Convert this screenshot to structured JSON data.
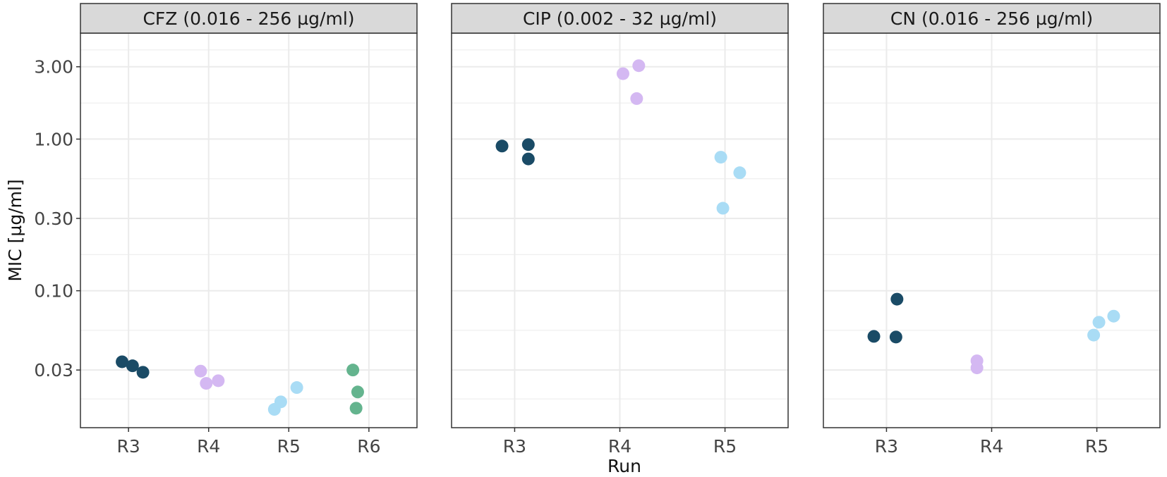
{
  "chart_data": {
    "type": "scatter",
    "xlabel": "Run",
    "ylabel": "MIC [µg/ml]",
    "yscale": "log10",
    "ylim": [
      0.0125,
      5.0
    ],
    "yticks": [
      0.03,
      0.1,
      0.3,
      1.0,
      3.0
    ],
    "ytick_labels": [
      "0.03",
      "0.10",
      "0.30",
      "1.00",
      "3.00"
    ],
    "grid": true,
    "colors": {
      "R3": "#1a4b66",
      "R4": "#d4b8f2",
      "R5": "#a9dcf5",
      "R6": "#64b48e",
      "strip_bg": "#d9d9d9",
      "grid": "#ebebeb",
      "border": "#333333"
    },
    "panels": [
      {
        "title": "CFZ (0.016 - 256 µg/ml)",
        "categories": [
          "R3",
          "R4",
          "R5",
          "R6"
        ],
        "series": [
          {
            "name": "R3",
            "points": [
              {
                "x": 0.92,
                "y": 0.034
              },
              {
                "x": 1.05,
                "y": 0.032
              },
              {
                "x": 1.18,
                "y": 0.029
              }
            ]
          },
          {
            "name": "R4",
            "points": [
              {
                "x": 1.9,
                "y": 0.0295
              },
              {
                "x": 1.97,
                "y": 0.0245
              },
              {
                "x": 2.12,
                "y": 0.0255
              }
            ]
          },
          {
            "name": "R5",
            "points": [
              {
                "x": 2.82,
                "y": 0.0165
              },
              {
                "x": 2.9,
                "y": 0.0185
              },
              {
                "x": 3.1,
                "y": 0.023
              }
            ]
          },
          {
            "name": "R6",
            "points": [
              {
                "x": 3.8,
                "y": 0.03
              },
              {
                "x": 3.86,
                "y": 0.0215
              },
              {
                "x": 3.84,
                "y": 0.0168
              }
            ]
          }
        ]
      },
      {
        "title": "CIP (0.002 - 32 µg/ml)",
        "categories": [
          "R3",
          "R4",
          "R5"
        ],
        "series": [
          {
            "name": "R3",
            "points": [
              {
                "x": 0.88,
                "y": 0.9
              },
              {
                "x": 1.13,
                "y": 0.92
              },
              {
                "x": 1.13,
                "y": 0.74
              }
            ]
          },
          {
            "name": "R4",
            "points": [
              {
                "x": 2.03,
                "y": 2.7
              },
              {
                "x": 2.18,
                "y": 3.05
              },
              {
                "x": 2.16,
                "y": 1.85
              }
            ]
          },
          {
            "name": "R5",
            "points": [
              {
                "x": 2.96,
                "y": 0.76
              },
              {
                "x": 3.14,
                "y": 0.6
              },
              {
                "x": 2.98,
                "y": 0.35
              }
            ]
          }
        ]
      },
      {
        "title": "CN (0.016 - 256 µg/ml)",
        "categories": [
          "R3",
          "R4",
          "R5"
        ],
        "series": [
          {
            "name": "R3",
            "points": [
              {
                "x": 0.88,
                "y": 0.05
              },
              {
                "x": 1.1,
                "y": 0.088
              },
              {
                "x": 1.09,
                "y": 0.0495
              }
            ]
          },
          {
            "name": "R4",
            "points": [
              {
                "x": 1.86,
                "y": 0.0345
              },
              {
                "x": 1.86,
                "y": 0.031
              }
            ]
          },
          {
            "name": "R5",
            "points": [
              {
                "x": 2.97,
                "y": 0.051
              },
              {
                "x": 3.02,
                "y": 0.062
              },
              {
                "x": 3.16,
                "y": 0.068
              }
            ]
          }
        ]
      }
    ]
  }
}
